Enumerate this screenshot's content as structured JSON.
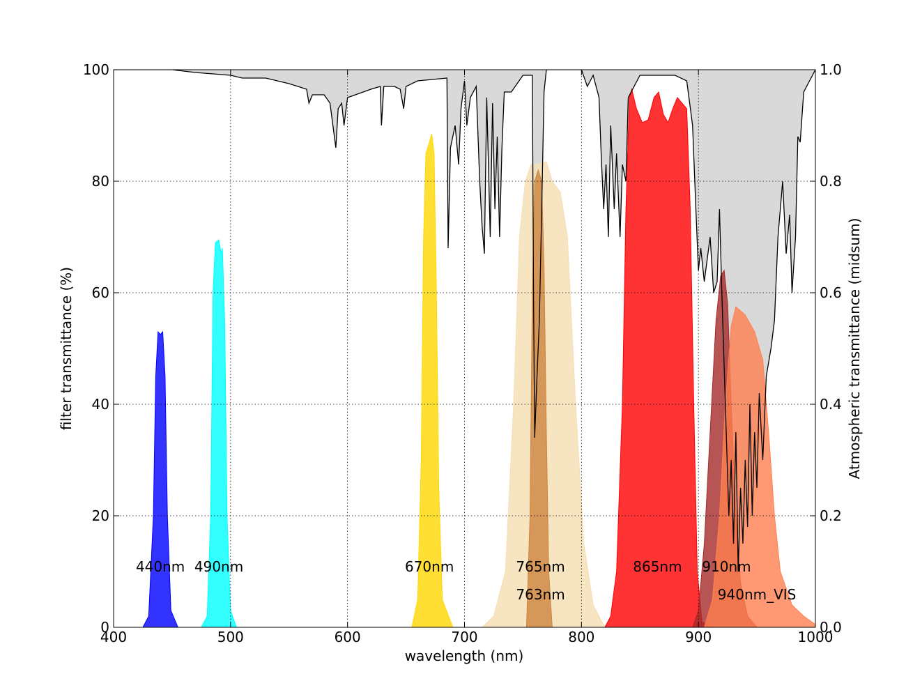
{
  "chart_data": {
    "type": "area",
    "xlabel": "wavelength (nm)",
    "ylabel": "filter transmittance (%)",
    "y2label": "Atmospheric transmittance (midsum)",
    "xlim": [
      400,
      1000
    ],
    "ylim": [
      0,
      100
    ],
    "y2lim": [
      0,
      1
    ],
    "xticks": [
      400,
      500,
      600,
      700,
      800,
      900,
      1000
    ],
    "yticks": [
      0,
      20,
      40,
      60,
      80,
      100
    ],
    "y2ticks": [
      {
        "value": 0,
        "label": "0.0"
      },
      0.2,
      0.4,
      0.6,
      0.8,
      {
        "value": 1,
        "label": "1.0"
      }
    ],
    "grid": true,
    "series": [
      {
        "axis": "y2",
        "color": "#000000",
        "fill_above_color": "#d9d9d9",
        "x": [
          400,
          450,
          470,
          500,
          510,
          530,
          550,
          565,
          567,
          570,
          580,
          585,
          590,
          592,
          595,
          597,
          600,
          620,
          628,
          629,
          631,
          640,
          645,
          648,
          650,
          660,
          685,
          686,
          688,
          692,
          695,
          697,
          700,
          702,
          705,
          710,
          713,
          715,
          717,
          719,
          722,
          724,
          726,
          728,
          730,
          732,
          734,
          740,
          750,
          758,
          759,
          760,
          762,
          764,
          766,
          768,
          770,
          800,
          805,
          810,
          815,
          817,
          819,
          821,
          823,
          825,
          828,
          830,
          833,
          835,
          838,
          840,
          850,
          880,
          890,
          895,
          898,
          900,
          902,
          905,
          910,
          913,
          916,
          918,
          920,
          923,
          926,
          928,
          930,
          932,
          934,
          936,
          938,
          940,
          942,
          944,
          946,
          948,
          950,
          952,
          955,
          958,
          962,
          965,
          968,
          970,
          972,
          975,
          978,
          980,
          983,
          985,
          987,
          990,
          995,
          1000
        ],
        "values": [
          1.0,
          1.0,
          0.995,
          0.99,
          0.985,
          0.985,
          0.975,
          0.965,
          0.94,
          0.955,
          0.955,
          0.94,
          0.86,
          0.93,
          0.94,
          0.9,
          0.95,
          0.965,
          0.97,
          0.9,
          0.97,
          0.97,
          0.965,
          0.93,
          0.97,
          0.98,
          0.985,
          0.68,
          0.86,
          0.9,
          0.83,
          0.93,
          0.98,
          0.9,
          0.95,
          0.97,
          0.8,
          0.72,
          0.67,
          0.95,
          0.7,
          0.94,
          0.75,
          0.88,
          0.7,
          0.86,
          0.96,
          0.96,
          0.99,
          0.99,
          0.6,
          0.34,
          0.45,
          0.55,
          0.75,
          0.96,
          1.0,
          1.0,
          0.97,
          0.99,
          0.95,
          0.84,
          0.75,
          0.83,
          0.7,
          0.9,
          0.75,
          0.85,
          0.7,
          0.83,
          0.8,
          0.95,
          0.99,
          0.99,
          0.98,
          0.9,
          0.74,
          0.64,
          0.68,
          0.62,
          0.7,
          0.6,
          0.62,
          0.75,
          0.6,
          0.4,
          0.2,
          0.3,
          0.15,
          0.35,
          0.1,
          0.25,
          0.15,
          0.3,
          0.18,
          0.4,
          0.2,
          0.35,
          0.25,
          0.42,
          0.3,
          0.45,
          0.5,
          0.55,
          0.7,
          0.75,
          0.8,
          0.67,
          0.74,
          0.6,
          0.7,
          0.88,
          0.87,
          0.96,
          0.98,
          1.0
        ]
      },
      {
        "color": "#0000ff",
        "alpha": 0.8,
        "x": [
          425,
          430,
          434,
          436,
          438,
          440,
          442,
          444,
          446,
          449,
          455
        ],
        "values": [
          0,
          2,
          20,
          45,
          53,
          52.5,
          53,
          45,
          20,
          3,
          0
        ]
      },
      {
        "color": "#00ffff",
        "alpha": 0.8,
        "x": [
          475,
          480,
          483,
          485,
          487,
          490,
          492,
          493,
          495,
          497,
          500,
          505
        ],
        "values": [
          0,
          2,
          20,
          60,
          69,
          69.5,
          67,
          68,
          55,
          20,
          3,
          0
        ]
      },
      {
        "color": "#ffd700",
        "alpha": 0.8,
        "x": [
          655,
          660,
          663,
          665,
          667,
          670,
          672,
          674,
          676,
          678,
          681,
          690
        ],
        "values": [
          0,
          5,
          30,
          70,
          85,
          87,
          88.5,
          85,
          60,
          25,
          5,
          0
        ]
      },
      {
        "color": "#f5deb3",
        "alpha": 0.8,
        "x": [
          715,
          725,
          735,
          742,
          747,
          752,
          757,
          762,
          770,
          775,
          782,
          788,
          795,
          802,
          810,
          820
        ],
        "values": [
          0,
          2,
          10,
          40,
          70,
          80,
          83,
          83,
          83.5,
          80,
          78,
          70,
          40,
          15,
          4,
          0
        ]
      },
      {
        "color": "#cd853f",
        "alpha": 0.8,
        "x": [
          753,
          756,
          758,
          760,
          763,
          766,
          768,
          770,
          772,
          775
        ],
        "values": [
          0,
          20,
          60,
          80,
          82,
          80,
          65,
          35,
          10,
          0
        ]
      },
      {
        "color": "#ff0000",
        "alpha": 0.8,
        "x": [
          820,
          825,
          830,
          835,
          838,
          841,
          843,
          847,
          852,
          857,
          862,
          866,
          870,
          874,
          878,
          882,
          886,
          890,
          893,
          896,
          899,
          903,
          910
        ],
        "values": [
          0,
          2,
          10,
          40,
          75,
          95,
          96.5,
          93,
          90.5,
          91,
          95,
          96,
          92,
          90.5,
          93,
          95,
          94,
          93,
          75,
          40,
          10,
          1,
          0
        ]
      },
      {
        "color": "#a52a2a",
        "alpha": 0.8,
        "x": [
          895,
          900,
          905,
          910,
          915,
          919,
          922,
          925,
          928,
          932,
          936,
          942,
          950
        ],
        "values": [
          0,
          3,
          15,
          35,
          55,
          63,
          64,
          58,
          40,
          20,
          8,
          2,
          0
        ]
      },
      {
        "color": "#ff7f50",
        "alpha": 0.8,
        "x": [
          905,
          912,
          918,
          923,
          928,
          932,
          940,
          948,
          955,
          960,
          965,
          970,
          980,
          990,
          1000
        ],
        "values": [
          0,
          5,
          20,
          40,
          54,
          57.5,
          56,
          53,
          48,
          35,
          20,
          10,
          4,
          2,
          0.5
        ]
      }
    ],
    "annotations": [
      {
        "text": "440nm",
        "x": 440,
        "y": 10
      },
      {
        "text": "490nm",
        "x": 490,
        "y": 10
      },
      {
        "text": "670nm",
        "x": 670,
        "y": 10
      },
      {
        "text": "765nm",
        "x": 765,
        "y": 10
      },
      {
        "text": "865nm",
        "x": 865,
        "y": 10
      },
      {
        "text": "910nm",
        "x": 924,
        "y": 10
      },
      {
        "text": "763nm",
        "x": 765,
        "y": 5
      },
      {
        "text": "940nm_VIS",
        "x": 950,
        "y": 5
      }
    ]
  }
}
